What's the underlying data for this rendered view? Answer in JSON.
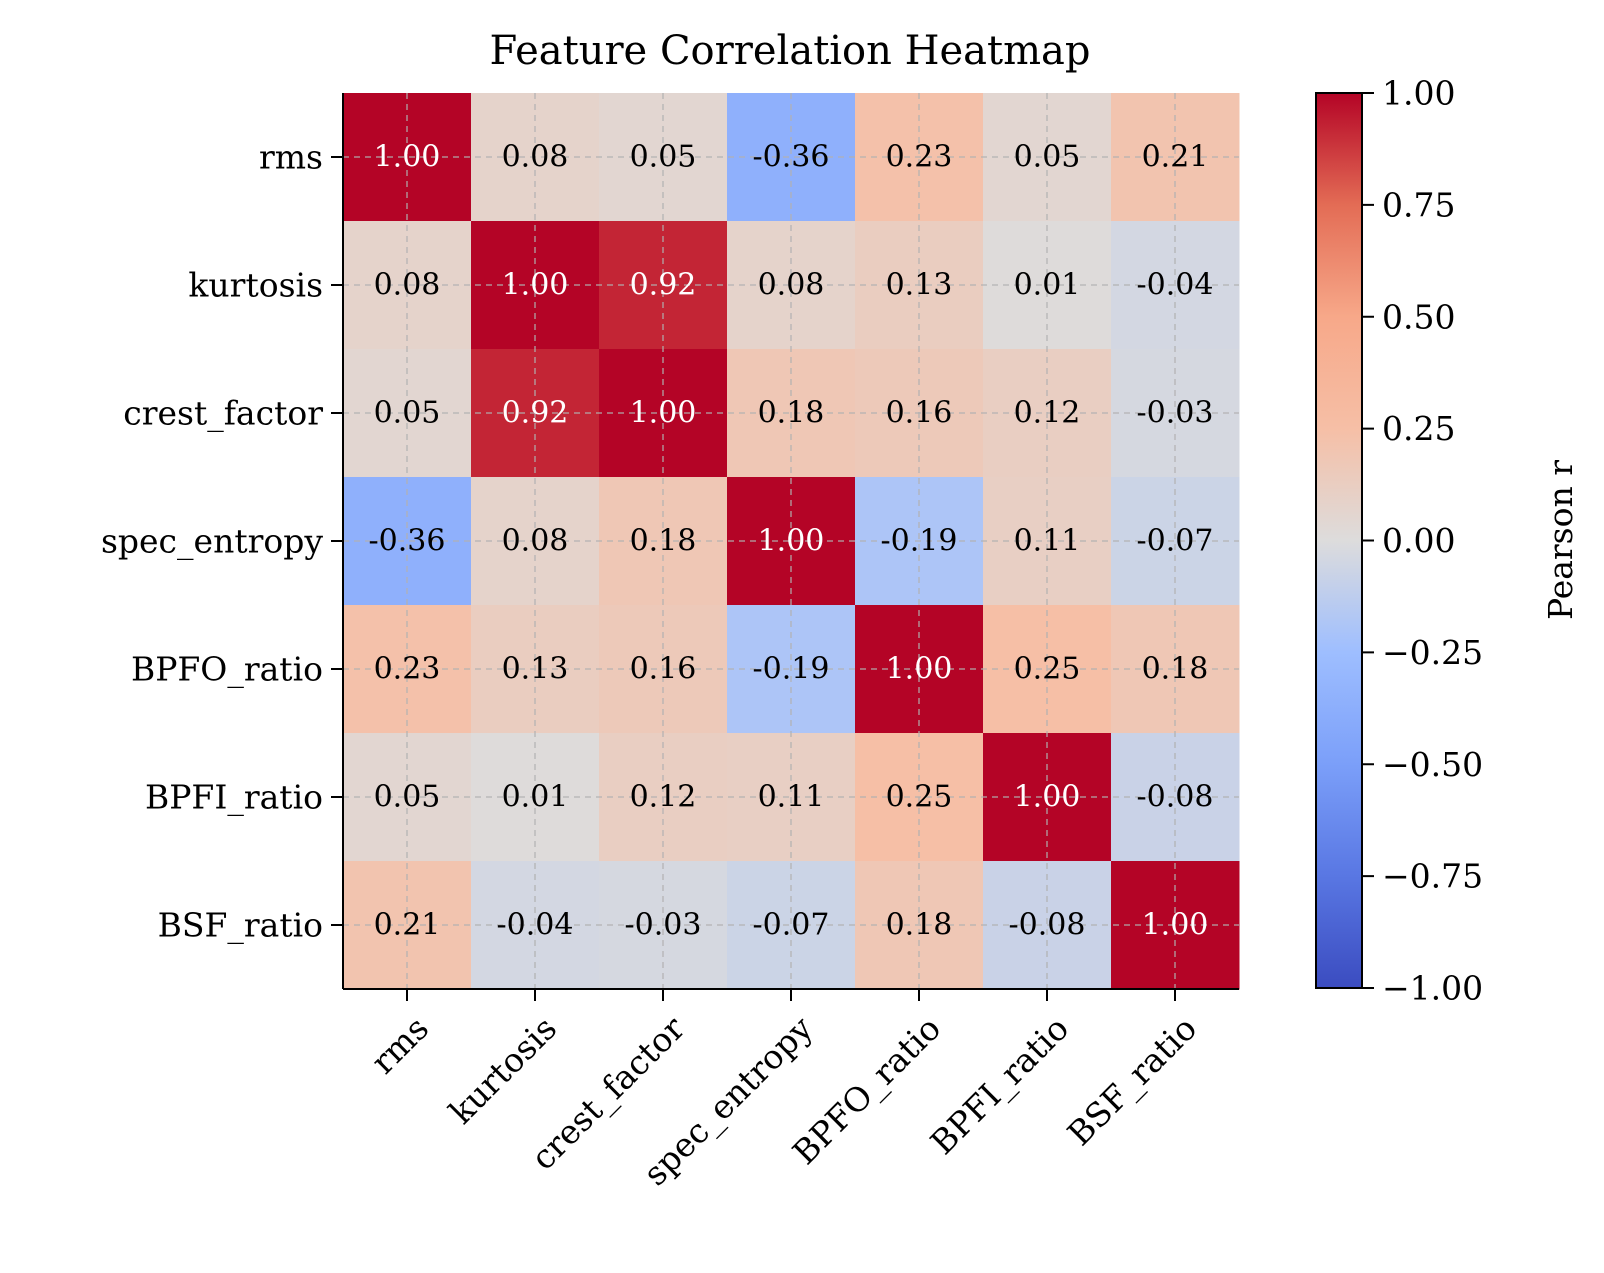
{
  "chart_data": {
    "type": "heatmap",
    "title": "Feature Correlation Heatmap",
    "features": [
      "rms",
      "kurtosis",
      "crest_factor",
      "spec_entropy",
      "BPFO_ratio",
      "BPFI_ratio",
      "BSF_ratio"
    ],
    "matrix": [
      [
        1.0,
        0.08,
        0.05,
        -0.36,
        0.23,
        0.05,
        0.21
      ],
      [
        0.08,
        1.0,
        0.92,
        0.08,
        0.13,
        0.01,
        -0.04
      ],
      [
        0.05,
        0.92,
        1.0,
        0.18,
        0.16,
        0.12,
        -0.03
      ],
      [
        -0.36,
        0.08,
        0.18,
        1.0,
        -0.19,
        0.11,
        -0.07
      ],
      [
        0.23,
        0.13,
        0.16,
        -0.19,
        1.0,
        0.25,
        0.18
      ],
      [
        0.05,
        0.01,
        0.12,
        0.11,
        0.25,
        1.0,
        -0.08
      ],
      [
        0.21,
        -0.04,
        -0.03,
        -0.07,
        0.18,
        -0.08,
        1.0
      ]
    ],
    "cell_labels": [
      [
        "1.00",
        "0.08",
        "0.05",
        "-0.36",
        "0.23",
        "0.05",
        "0.21"
      ],
      [
        "0.08",
        "1.00",
        "0.92",
        "0.08",
        "0.13",
        "0.01",
        "-0.04"
      ],
      [
        "0.05",
        "0.92",
        "1.00",
        "0.18",
        "0.16",
        "0.12",
        "-0.03"
      ],
      [
        "-0.36",
        "0.08",
        "0.18",
        "1.00",
        "-0.19",
        "0.11",
        "-0.07"
      ],
      [
        "0.23",
        "0.13",
        "0.16",
        "-0.19",
        "1.00",
        "0.25",
        "0.18"
      ],
      [
        "0.05",
        "0.01",
        "0.12",
        "0.11",
        "0.25",
        "1.00",
        "-0.08"
      ],
      [
        "0.21",
        "-0.04",
        "-0.03",
        "-0.07",
        "0.18",
        "-0.08",
        "1.00"
      ]
    ],
    "colormap": "coolwarm",
    "vmin": -1.0,
    "vmax": 1.0,
    "colorbar_label": "Pearson r",
    "colorbar_ticks": [
      1.0,
      0.75,
      0.5,
      0.25,
      0.0,
      -0.25,
      -0.5,
      -0.75,
      -1.0
    ],
    "colorbar_tick_labels": [
      "1.00",
      "0.75",
      "0.50",
      "0.25",
      "0.00",
      "−0.25",
      "−0.50",
      "−0.75",
      "−1.00"
    ],
    "grid": true,
    "colors": {
      "cold": "#3b4cc0",
      "neutral": "#dddddd",
      "hot": "#b40426",
      "gridline": "#b0b0b0"
    }
  }
}
